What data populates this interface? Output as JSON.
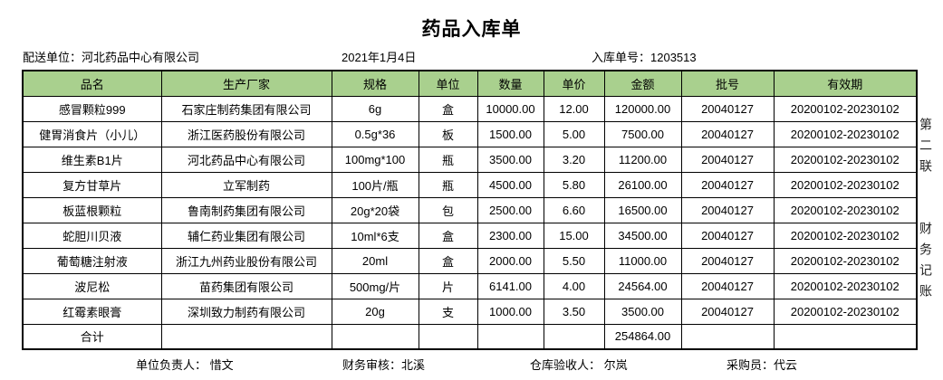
{
  "title": "药品入库单",
  "info": {
    "delivery_unit": "配送单位：河北药品中心有限公司",
    "date": "2021年1月4日",
    "order_no": "入库单号：1203513"
  },
  "table": {
    "columns": [
      "品名",
      "生产厂家",
      "规格",
      "单位",
      "数量",
      "单价",
      "金额",
      "批号",
      "有效期"
    ],
    "rows": [
      [
        "感冒颗粒999",
        "石家庄制药集团有限公司",
        "6g",
        "盒",
        "10000.00",
        "12.00",
        "120000.00",
        "20040127",
        "20200102-20230102"
      ],
      [
        "健胃消食片（小儿）",
        "浙江医药股份有限公司",
        "0.5g*36",
        "板",
        "1500.00",
        "5.00",
        "7500.00",
        "20040127",
        "20200102-20230102"
      ],
      [
        "维生素B1片",
        "河北药品中心有限公司",
        "100mg*100",
        "瓶",
        "3500.00",
        "3.20",
        "11200.00",
        "20040127",
        "20200102-20230102"
      ],
      [
        "复方甘草片",
        "立军制药",
        "100片/瓶",
        "瓶",
        "4500.00",
        "5.80",
        "26100.00",
        "20040127",
        "20200102-20230102"
      ],
      [
        "板蓝根颗粒",
        "鲁南制药集团有限公司",
        "20g*20袋",
        "包",
        "2500.00",
        "6.60",
        "16500.00",
        "20040127",
        "20200102-20230102"
      ],
      [
        "蛇胆川贝液",
        "辅仁药业集团有限公司",
        "10ml*6支",
        "盒",
        "2300.00",
        "15.00",
        "34500.00",
        "20040127",
        "20200102-20230102"
      ],
      [
        "葡萄糖注射液",
        "浙江九州药业股份有限公司",
        "20ml",
        "盒",
        "2000.00",
        "5.50",
        "11000.00",
        "20040127",
        "20200102-20230102"
      ],
      [
        "波尼松",
        "苗药集团有限公司",
        "500mg/片",
        "片",
        "6141.00",
        "4.00",
        "24564.00",
        "20040127",
        "20200102-20230102"
      ],
      [
        "红霉素眼膏",
        "深圳致力制药有限公司",
        "20g",
        "支",
        "1000.00",
        "3.50",
        "3500.00",
        "20040127",
        "20200102-20230102"
      ]
    ],
    "total_row": [
      "合计",
      "",
      "",
      "",
      "",
      "",
      "254864.00",
      "",
      ""
    ]
  },
  "side_labels": {
    "copy_label": "第二联",
    "purpose_label": "财务记账"
  },
  "footer": {
    "unit_manager": "单位负责人： 惜文",
    "finance_audit": "财务审核：北溪",
    "warehouse_inspector": "仓库验收人： 尔岚",
    "purchaser": "采购员：代云"
  },
  "colors": {
    "header_bg": "#a9d08e",
    "border": "#000000"
  }
}
